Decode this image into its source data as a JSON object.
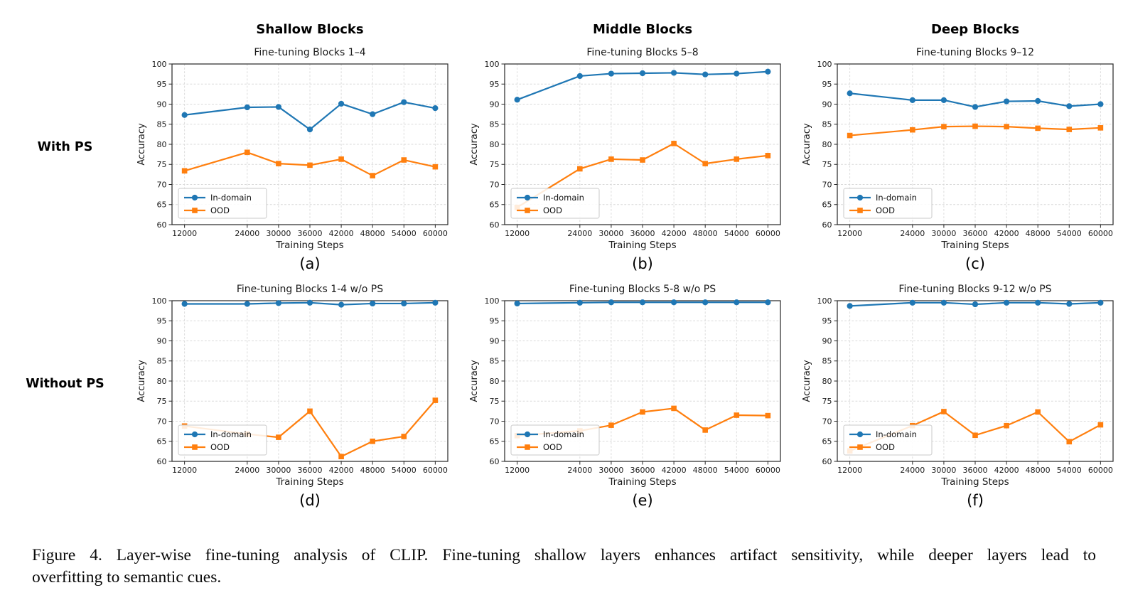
{
  "figure": {
    "column_headers": [
      "Shallow Blocks",
      "Middle Blocks",
      "Deep Blocks"
    ],
    "row_labels": [
      "With PS",
      "Without PS"
    ],
    "caption_line1": "Figure 4.  Layer-wise fine-tuning analysis of CLIP. Fine-tuning shallow layers enhances artifact sensitivity, while deeper layers lead to",
    "caption_line2": "overfitting to semantic cues."
  },
  "colors": {
    "in_domain": "#1f77b4",
    "ood": "#ff7f0e",
    "grid_line": "#d9d9d9",
    "spine": "#262626"
  },
  "chart_data": [
    {
      "type": "line",
      "panel": "(a)",
      "title": "Fine-tuning Blocks 1–4",
      "xlabel": "Training Steps",
      "ylabel": "Accuracy",
      "x": [
        12000,
        24000,
        30000,
        36000,
        42000,
        48000,
        54000,
        60000
      ],
      "xtick_labels": [
        "12000",
        "24000",
        "30000",
        "36000",
        "42000",
        "48000",
        "54000",
        "60000"
      ],
      "ylim": [
        60,
        100
      ],
      "yticks": [
        60,
        65,
        70,
        75,
        80,
        85,
        90,
        95,
        100
      ],
      "grid": "dashed",
      "legend": {
        "position": "lower left",
        "entries": [
          "In-domain",
          "OOD"
        ]
      },
      "series": [
        {
          "name": "In-domain",
          "color": "#1f77b4",
          "marker": "circle",
          "values": [
            87.3,
            89.2,
            89.3,
            83.7,
            90.1,
            87.5,
            90.5,
            89.0
          ]
        },
        {
          "name": "OOD",
          "color": "#ff7f0e",
          "marker": "square",
          "values": [
            73.4,
            78.0,
            75.2,
            74.8,
            76.3,
            72.2,
            76.1,
            74.4
          ]
        }
      ]
    },
    {
      "type": "line",
      "panel": "(b)",
      "title": "Fine-tuning Blocks 5–8",
      "xlabel": "Training Steps",
      "ylabel": "Accuracy",
      "x": [
        12000,
        24000,
        30000,
        36000,
        42000,
        48000,
        54000,
        60000
      ],
      "xtick_labels": [
        "12000",
        "24000",
        "30000",
        "36000",
        "42000",
        "48000",
        "54000",
        "60000"
      ],
      "ylim": [
        60,
        100
      ],
      "yticks": [
        60,
        65,
        70,
        75,
        80,
        85,
        90,
        95,
        100
      ],
      "grid": "dashed",
      "legend": {
        "position": "lower left",
        "entries": [
          "In-domain",
          "OOD"
        ]
      },
      "series": [
        {
          "name": "In-domain",
          "color": "#1f77b4",
          "marker": "circle",
          "values": [
            91.1,
            97.0,
            97.6,
            97.7,
            97.8,
            97.4,
            97.6,
            98.1
          ]
        },
        {
          "name": "OOD",
          "color": "#ff7f0e",
          "marker": "square",
          "values": [
            64.3,
            73.9,
            76.3,
            76.1,
            80.2,
            75.2,
            76.3,
            77.2
          ]
        }
      ]
    },
    {
      "type": "line",
      "panel": "(c)",
      "title": "Fine-tuning Blocks 9–12",
      "xlabel": "Training Steps",
      "ylabel": "Accuracy",
      "x": [
        12000,
        24000,
        30000,
        36000,
        42000,
        48000,
        54000,
        60000
      ],
      "xtick_labels": [
        "12000",
        "24000",
        "30000",
        "36000",
        "42000",
        "48000",
        "54000",
        "60000"
      ],
      "ylim": [
        60,
        100
      ],
      "yticks": [
        60,
        65,
        70,
        75,
        80,
        85,
        90,
        95,
        100
      ],
      "grid": "dashed",
      "legend": {
        "position": "lower left",
        "entries": [
          "In-domain",
          "OOD"
        ]
      },
      "series": [
        {
          "name": "In-domain",
          "color": "#1f77b4",
          "marker": "circle",
          "values": [
            92.7,
            91.0,
            91.0,
            89.3,
            90.7,
            90.8,
            89.5,
            90.0
          ]
        },
        {
          "name": "OOD",
          "color": "#ff7f0e",
          "marker": "square",
          "values": [
            82.2,
            83.6,
            84.4,
            84.5,
            84.4,
            84.0,
            83.7,
            84.1
          ]
        }
      ]
    },
    {
      "type": "line",
      "panel": "(d)",
      "title": "Fine-tuning Blocks 1-4 w/o PS",
      "xlabel": "Training Steps",
      "ylabel": "Accuracy",
      "x": [
        12000,
        24000,
        30000,
        36000,
        42000,
        48000,
        54000,
        60000
      ],
      "xtick_labels": [
        "12000",
        "24000",
        "30000",
        "36000",
        "42000",
        "48000",
        "54000",
        "60000"
      ],
      "ylim": [
        60,
        100
      ],
      "yticks": [
        60,
        65,
        70,
        75,
        80,
        85,
        90,
        95,
        100
      ],
      "grid": "dashed",
      "legend": {
        "position": "lower left",
        "entries": [
          "In-domain",
          "OOD"
        ]
      },
      "series": [
        {
          "name": "In-domain",
          "color": "#1f77b4",
          "marker": "circle",
          "values": [
            99.2,
            99.2,
            99.4,
            99.5,
            99.0,
            99.3,
            99.3,
            99.5
          ]
        },
        {
          "name": "OOD",
          "color": "#ff7f0e",
          "marker": "square",
          "values": [
            68.8,
            66.8,
            66.0,
            72.5,
            61.2,
            65.0,
            66.2,
            75.2
          ]
        }
      ]
    },
    {
      "type": "line",
      "panel": "(e)",
      "title": "Fine-tuning Blocks 5-8 w/o PS",
      "xlabel": "Training Steps",
      "ylabel": "Accuracy",
      "x": [
        12000,
        24000,
        30000,
        36000,
        42000,
        48000,
        54000,
        60000
      ],
      "xtick_labels": [
        "12000",
        "24000",
        "30000",
        "36000",
        "42000",
        "48000",
        "54000",
        "60000"
      ],
      "ylim": [
        60,
        100
      ],
      "yticks": [
        60,
        65,
        70,
        75,
        80,
        85,
        90,
        95,
        100
      ],
      "grid": "dashed",
      "legend": {
        "position": "lower left",
        "entries": [
          "In-domain",
          "OOD"
        ]
      },
      "series": [
        {
          "name": "In-domain",
          "color": "#1f77b4",
          "marker": "circle",
          "values": [
            99.3,
            99.5,
            99.6,
            99.6,
            99.6,
            99.6,
            99.6,
            99.6
          ]
        },
        {
          "name": "OOD",
          "color": "#ff7f0e",
          "marker": "square",
          "values": [
            66.4,
            67.6,
            69.0,
            72.3,
            73.2,
            67.8,
            71.5,
            71.4
          ]
        }
      ]
    },
    {
      "type": "line",
      "panel": "(f)",
      "title": "Fine-tuning Blocks 9-12 w/o PS",
      "xlabel": "Training Steps",
      "ylabel": "Accuracy",
      "x": [
        12000,
        24000,
        30000,
        36000,
        42000,
        48000,
        54000,
        60000
      ],
      "xtick_labels": [
        "12000",
        "24000",
        "30000",
        "36000",
        "42000",
        "48000",
        "54000",
        "60000"
      ],
      "ylim": [
        60,
        100
      ],
      "yticks": [
        60,
        65,
        70,
        75,
        80,
        85,
        90,
        95,
        100
      ],
      "grid": "dashed",
      "legend": {
        "position": "lower left",
        "entries": [
          "In-domain",
          "OOD"
        ]
      },
      "series": [
        {
          "name": "In-domain",
          "color": "#1f77b4",
          "marker": "circle",
          "values": [
            98.7,
            99.5,
            99.5,
            99.1,
            99.5,
            99.5,
            99.2,
            99.5
          ]
        },
        {
          "name": "OOD",
          "color": "#ff7f0e",
          "marker": "square",
          "values": [
            62.6,
            68.9,
            72.4,
            66.5,
            68.9,
            72.3,
            64.9,
            69.1
          ]
        }
      ]
    }
  ]
}
